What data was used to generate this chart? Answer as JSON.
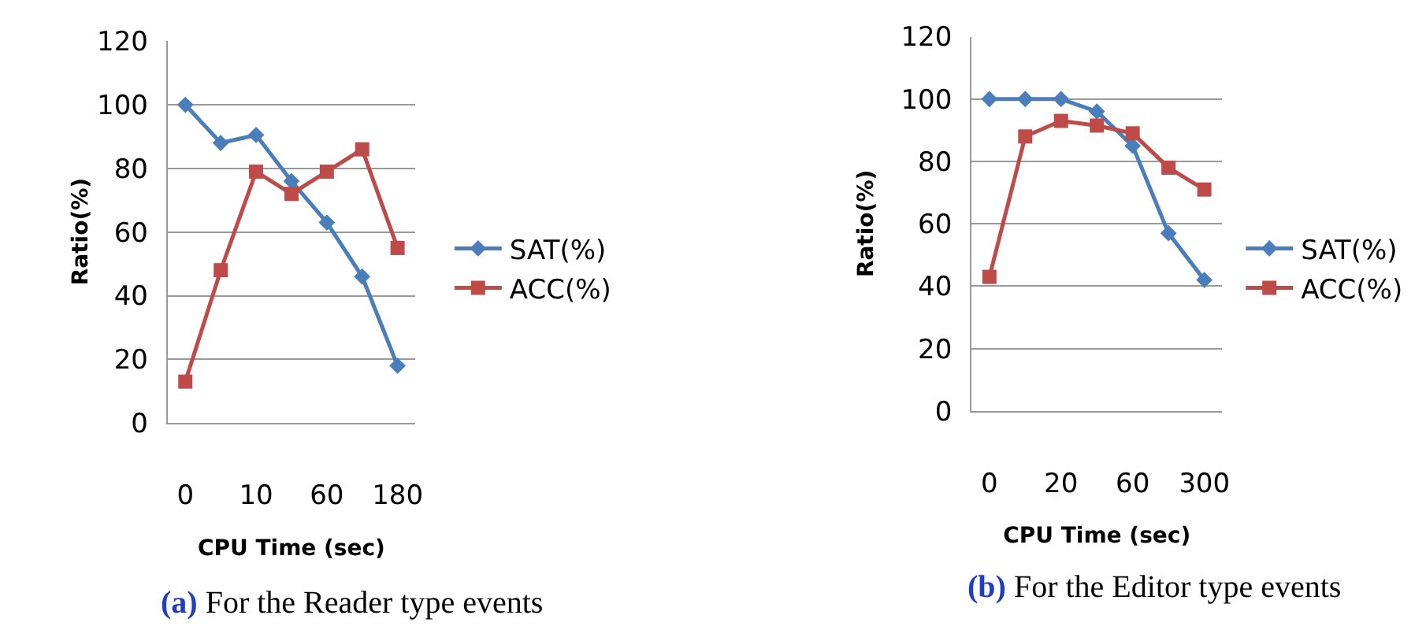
{
  "chart_data": [
    {
      "type": "line",
      "xlabel": "CPU Time (sec)",
      "ylabel": "Ratio(%)",
      "categories": [
        "0",
        null,
        "10",
        null,
        "60",
        null,
        "180"
      ],
      "ylim": [
        0,
        120
      ],
      "yticks": [
        0,
        20,
        40,
        60,
        80,
        100,
        120
      ],
      "grid": "y",
      "legend": "right",
      "line_style": "solid",
      "series": [
        {
          "name": "SAT(%)",
          "color": "#4a7ebb",
          "marker": "diamond",
          "values": [
            100,
            88,
            90.5,
            76,
            63,
            46,
            18
          ]
        },
        {
          "name": "ACC(%)",
          "color": "#be4b48",
          "marker": "square",
          "values": [
            13,
            48,
            79,
            72,
            79,
            86,
            55
          ]
        }
      ],
      "annotations": [
        "(a) For the Reader type events"
      ]
    },
    {
      "type": "line",
      "xlabel": "CPU Time (sec)",
      "ylabel": "Ratio(%)",
      "categories": [
        "0",
        null,
        "20",
        null,
        "60",
        null,
        "300"
      ],
      "ylim": [
        0,
        120
      ],
      "yticks": [
        0,
        20,
        40,
        60,
        80,
        100,
        120
      ],
      "grid": "y",
      "legend": "right",
      "line_style": "solid",
      "series": [
        {
          "name": "SAT(%)",
          "color": "#4a7ebb",
          "marker": "diamond",
          "values": [
            100,
            100,
            100,
            96,
            85,
            57,
            42
          ]
        },
        {
          "name": "ACC(%)",
          "color": "#be4b48",
          "marker": "square",
          "values": [
            43,
            88,
            93,
            91.5,
            89,
            78,
            71
          ]
        }
      ],
      "annotations": [
        "(b) For the Editor type events"
      ]
    }
  ]
}
